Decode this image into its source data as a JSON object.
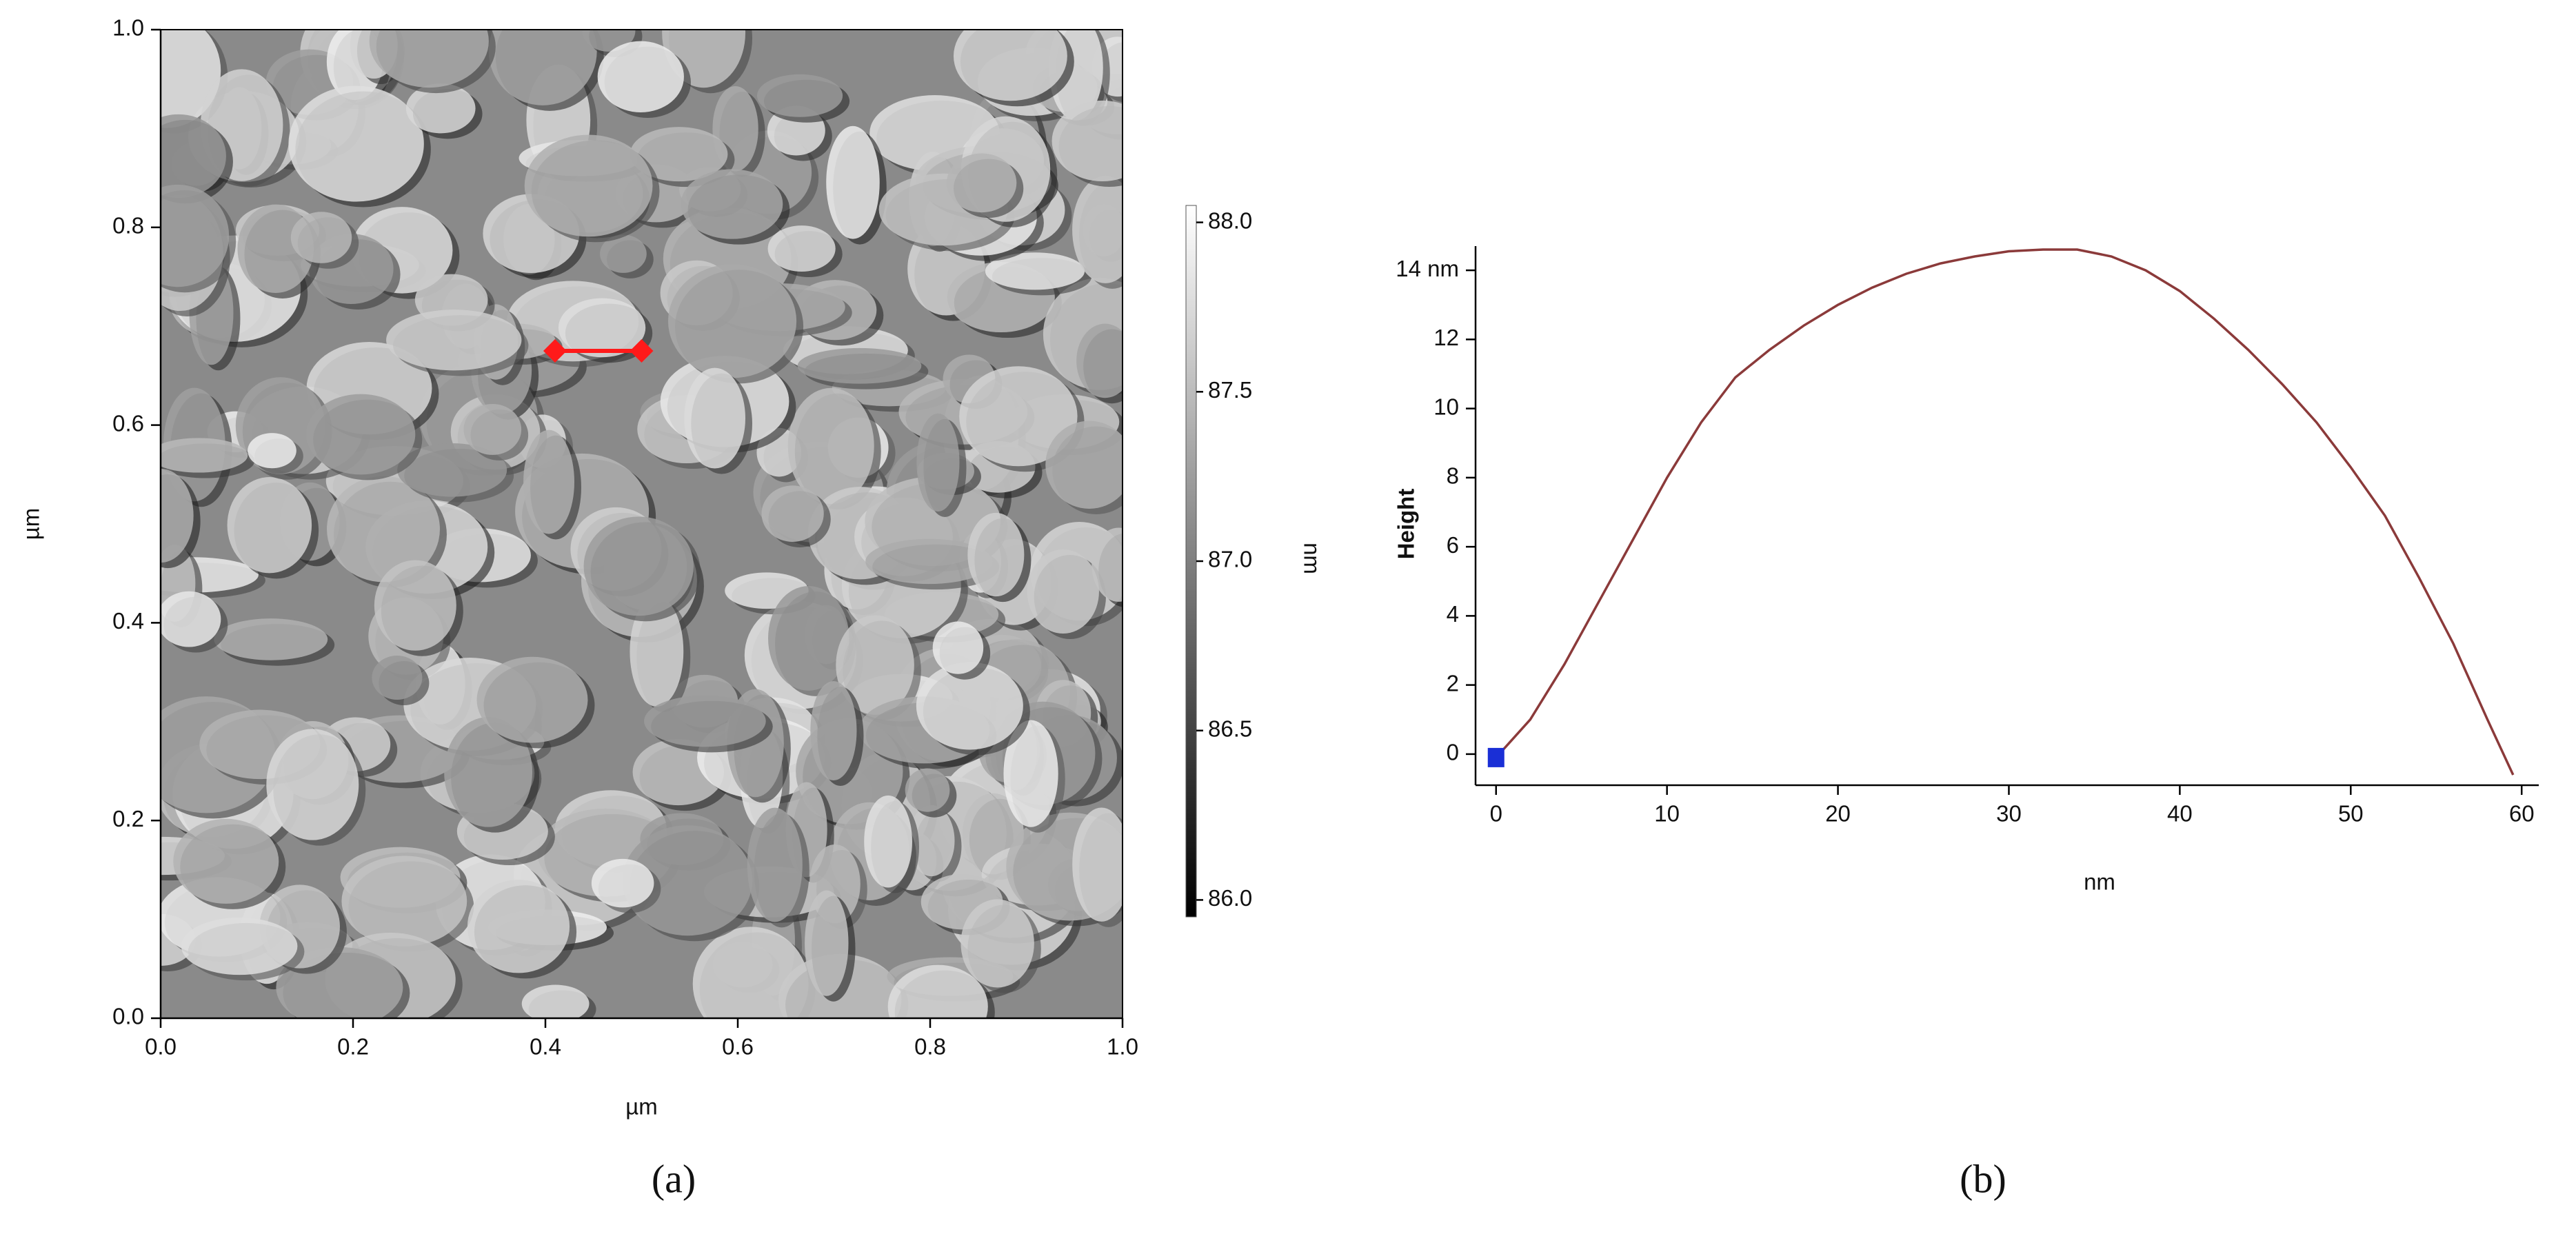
{
  "chart_data": [
    {
      "type": "image",
      "x_label": "µm",
      "y_label": "µm",
      "caption": "(a)",
      "xlim": [
        0,
        1
      ],
      "ylim": [
        0,
        1
      ],
      "xticks": [
        {
          "value": 0,
          "label": "0.0"
        },
        0.2,
        0.4,
        0.6,
        0.8,
        {
          "value": 1,
          "label": "1.0"
        }
      ],
      "yticks": [
        {
          "value": 0,
          "label": "0.0"
        },
        0.2,
        0.4,
        0.6,
        0.8,
        {
          "value": 1,
          "label": "1.0"
        }
      ],
      "colorbar_label": "nm",
      "clim": [
        85.95,
        88.05
      ],
      "colorbar_ticks": [
        {
          "value": 86,
          "label": "86.0"
        },
        86.5,
        {
          "value": 87,
          "label": "87.0"
        },
        87.5,
        {
          "value": 88,
          "label": "88.0"
        }
      ],
      "marker": {
        "x": [
          0.41,
          0.5
        ],
        "y": [
          0.675,
          0.675
        ],
        "color": "#ff1a1a"
      }
    },
    {
      "type": "line",
      "x_label": "nm",
      "y_label": "Height",
      "caption": "(b)",
      "xlim": [
        -1.2,
        61
      ],
      "ylim": [
        -0.9,
        14.7
      ],
      "xticks": [
        0,
        10,
        20,
        30,
        40,
        50,
        60
      ],
      "yticks": [
        0,
        2,
        4,
        6,
        8,
        10,
        12,
        {
          "value": 14,
          "label": "14 nm"
        }
      ],
      "x": [
        0,
        2,
        4,
        6,
        8,
        10,
        12,
        14,
        16,
        18,
        20,
        22,
        24,
        26,
        28,
        30,
        32,
        34,
        36,
        38,
        40,
        42,
        44,
        46,
        48,
        50,
        52,
        54,
        56,
        58,
        59.5
      ],
      "series": [
        {
          "color": "#8b3a3a",
          "values": [
            -0.1,
            1.0,
            2.6,
            4.4,
            6.2,
            8.0,
            9.6,
            10.9,
            11.7,
            12.4,
            13.0,
            13.5,
            13.9,
            14.2,
            14.4,
            14.55,
            14.6,
            14.6,
            14.4,
            14.0,
            13.4,
            12.6,
            11.7,
            10.7,
            9.6,
            8.3,
            6.9,
            5.1,
            3.2,
            1.0,
            -0.6
          ]
        }
      ],
      "cursor": {
        "x": 0,
        "y": -0.1,
        "color": "#1a2fd6"
      }
    }
  ]
}
